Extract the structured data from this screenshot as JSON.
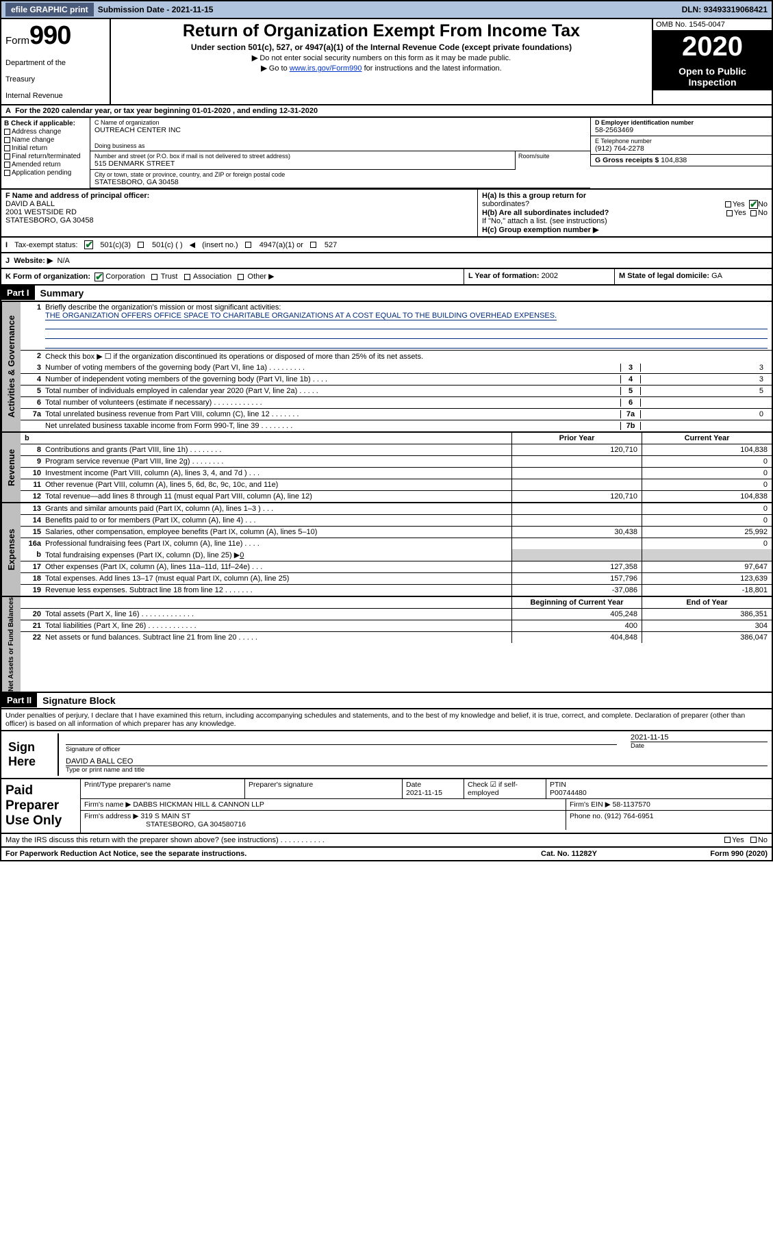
{
  "topbar": {
    "efile": "efile GRAPHIC print",
    "subdate_label": "Submission Date - ",
    "subdate": "2021-11-15",
    "dln_label": "DLN: ",
    "dln": "93493319068421"
  },
  "header": {
    "form_label": "Form",
    "form_num": "990",
    "dept1": "Department of the",
    "dept2": "Treasury",
    "dept3": "Internal Revenue",
    "title": "Return of Organization Exempt From Income Tax",
    "sub": "Under section 501(c), 527, or 4947(a)(1) of the Internal Revenue Code (except private foundations)",
    "note1": "Do not enter social security numbers on this form as it may be made public.",
    "note2_pre": "Go to ",
    "note2_link": "www.irs.gov/Form990",
    "note2_post": " for instructions and the latest information.",
    "omb": "OMB No. 1545-0047",
    "year": "2020",
    "open1": "Open to Public",
    "open2": "Inspection"
  },
  "row_a": "For the 2020 calendar year, or tax year beginning 01-01-2020   , and ending 12-31-2020",
  "colB": {
    "label": "B Check if applicable:",
    "items": [
      "Address change",
      "Name change",
      "Initial return",
      "Final return/terminated",
      "Amended return",
      "Application pending"
    ]
  },
  "orgname": {
    "label": "C Name of organization",
    "value": "OUTREACH CENTER INC",
    "dba": "Doing business as"
  },
  "street": {
    "label": "Number and street (or P.O. box if mail is not delivered to street address)",
    "value": "515 DENMARK STREET",
    "room": "Room/suite"
  },
  "city": {
    "label": "City or town, state or province, country, and ZIP or foreign postal code",
    "value": "STATESBORO, GA  30458"
  },
  "ein": {
    "label": "D Employer identification number",
    "value": "58-2563469"
  },
  "phone": {
    "label": "E Telephone number",
    "value": "(912) 764-2278"
  },
  "gross": {
    "label": "G Gross receipts $ ",
    "value": "104,838"
  },
  "principal": {
    "label": "F  Name and address of principal officer:",
    "name": "DAVID A BALL",
    "addr1": "2001 WESTSIDE RD",
    "addr2": "STATESBORO, GA  30458"
  },
  "h": {
    "ha": "H(a)  Is this a group return for",
    "ha2": "subordinates?",
    "hb": "H(b)  Are all subordinates included?",
    "note": "If \"No,\" attach a list. (see instructions)",
    "hc": "H(c)  Group exemption number ▶",
    "yes": "Yes",
    "no": "No"
  },
  "exempt": {
    "label": "Tax-exempt status:",
    "c3": "501(c)(3)",
    "c": "501(c) (  )",
    "ins": "(insert no.)",
    "a1": "4947(a)(1) or",
    "s527": "527"
  },
  "website": {
    "label": "Website: ▶",
    "value": "N/A"
  },
  "korg": "K Form of organization:",
  "korgopts": [
    "Corporation",
    "Trust",
    "Association",
    "Other ▶"
  ],
  "lyear": {
    "label": "L Year of formation: ",
    "value": "2002"
  },
  "mstate": {
    "label": "M State of legal domicile: ",
    "value": "GA"
  },
  "partI": {
    "hdr": "Part I",
    "title": "Summary"
  },
  "gov": {
    "tab": "Activities & Governance",
    "l1": "Briefly describe the organization's mission or most significant activities:",
    "mission": "THE ORGANIZATION OFFERS OFFICE SPACE TO CHARITABLE ORGANIZATIONS AT A COST EQUAL TO THE BUILDING OVERHEAD EXPENSES.",
    "l2": "Check this box ▶ ☐  if the organization discontinued its operations or disposed of more than 25% of its net assets.",
    "rows": [
      {
        "n": "3",
        "t": "Number of voting members of the governing body (Part VI, line 1a)  .    .    .    .    .    .    .    .    .",
        "bn": "3",
        "bv": "3"
      },
      {
        "n": "4",
        "t": "Number of independent voting members of the governing body (Part VI, line 1b)   .    .    .    .",
        "bn": "4",
        "bv": "3"
      },
      {
        "n": "5",
        "t": "Total number of individuals employed in calendar year 2020 (Part V, line 2a)    .    .    .    .    .",
        "bn": "5",
        "bv": "5"
      },
      {
        "n": "6",
        "t": "Total number of volunteers (estimate if necessary)    .    .    .    .    .    .    .    .    .    .    .    .",
        "bn": "6",
        "bv": ""
      },
      {
        "n": "7a",
        "t": "Total unrelated business revenue from Part VIII, column (C), line 12    .    .    .    .    .    .    .",
        "bn": "7a",
        "bv": "0"
      },
      {
        "n": "",
        "t": "Net unrelated business taxable income from Form 990-T, line 39    .    .    .    .    .    .    .    .",
        "bn": "7b",
        "bv": ""
      }
    ]
  },
  "cols": {
    "b": "b",
    "prior": "Prior Year",
    "curr": "Current Year",
    "beg": "Beginning of Current Year",
    "end": "End of Year"
  },
  "rev": {
    "tab": "Revenue",
    "rows": [
      {
        "n": "8",
        "t": "Contributions and grants (Part VIII, line 1h)    .    .    .    .    .    .    .    .",
        "p": "120,710",
        "c": "104,838"
      },
      {
        "n": "9",
        "t": "Program service revenue (Part VIII, line 2g)    .    .    .    .    .    .    .    .",
        "p": "",
        "c": "0"
      },
      {
        "n": "10",
        "t": "Investment income (Part VIII, column (A), lines 3, 4, and 7d )    .    .    .",
        "p": "",
        "c": "0"
      },
      {
        "n": "11",
        "t": "Other revenue (Part VIII, column (A), lines 5, 6d, 8c, 9c, 10c, and 11e)",
        "p": "",
        "c": "0"
      },
      {
        "n": "12",
        "t": "Total revenue—add lines 8 through 11 (must equal Part VIII, column (A), line 12)",
        "p": "120,710",
        "c": "104,838"
      }
    ]
  },
  "exp": {
    "tab": "Expenses",
    "rows": [
      {
        "n": "13",
        "t": "Grants and similar amounts paid (Part IX, column (A), lines 1–3 )    .    .    .",
        "p": "",
        "c": "0"
      },
      {
        "n": "14",
        "t": "Benefits paid to or for members (Part IX, column (A), line 4)    .    .    .",
        "p": "",
        "c": "0"
      },
      {
        "n": "15",
        "t": "Salaries, other compensation, employee benefits (Part IX, column (A), lines 5–10)",
        "p": "30,438",
        "c": "25,992"
      },
      {
        "n": "16a",
        "t": "Professional fundraising fees (Part IX, column (A), line 11e)    .    .    .    .",
        "p": "",
        "c": "0"
      }
    ],
    "l16b_n": "b",
    "l16b": "Total fundraising expenses (Part IX, column (D), line 25) ▶",
    "l16b_val": "0",
    "rows2": [
      {
        "n": "17",
        "t": "Other expenses (Part IX, column (A), lines 11a–11d, 11f–24e)   .    .    .",
        "p": "127,358",
        "c": "97,647"
      },
      {
        "n": "18",
        "t": "Total expenses. Add lines 13–17 (must equal Part IX, column (A), line 25)",
        "p": "157,796",
        "c": "123,639"
      },
      {
        "n": "19",
        "t": "Revenue less expenses. Subtract line 18 from line 12 .    .    .    .    .    .    .",
        "p": "-37,086",
        "c": "-18,801"
      }
    ]
  },
  "net": {
    "tab": "Net Assets or Fund Balances",
    "rows": [
      {
        "n": "20",
        "t": "Total assets (Part X, line 16)    .    .    .    .    .    .    .    .    .    .    .    .    .",
        "p": "405,248",
        "c": "386,351"
      },
      {
        "n": "21",
        "t": "Total liabilities (Part X, line 26)    .    .    .    .    .    .    .    .    .    .    .    .",
        "p": "400",
        "c": "304"
      },
      {
        "n": "22",
        "t": "Net assets or fund balances. Subtract line 21 from line 20    .    .    .    .    .",
        "p": "404,848",
        "c": "386,047"
      }
    ]
  },
  "partII": {
    "hdr": "Part II",
    "title": "Signature Block"
  },
  "penal": "Under penalties of perjury, I declare that I have examined this return, including accompanying schedules and statements, and to the best of my knowledge and belief, it is true, correct, and complete. Declaration of preparer (other than officer) is based on all information of which preparer has any knowledge.",
  "sign": {
    "here": "Sign Here",
    "sigoff": "Signature of officer",
    "date": "Date",
    "dateval": "2021-11-15",
    "name": "DAVID A BALL  CEO",
    "name_lbl": "Type or print name and title"
  },
  "prep": {
    "left": "Paid Preparer Use Only",
    "h": {
      "a": "Print/Type preparer's name",
      "b": "Preparer's signature",
      "c": "Date",
      "cv": "2021-11-15",
      "d": "Check ☑ if self-employed",
      "e": "PTIN",
      "ev": "P00744480"
    },
    "firm": "Firm's name   ▶ DABBS HICKMAN HILL & CANNON LLP",
    "ein": "Firm's EIN ▶ 58-1137570",
    "addr": "Firm's address ▶ 319 S MAIN ST",
    "city": "STATESBORO, GA  304580716",
    "phone": "Phone no. (912) 764-6951"
  },
  "discuss": {
    "q": "May the IRS discuss this return with the preparer shown above? (see instructions)    .    .    .    .    .    .    .    .    .    .    .",
    "yes": "Yes",
    "no": "No"
  },
  "footer": {
    "a": "For Paperwork Reduction Act Notice, see the separate instructions.",
    "b": "Cat. No. 11282Y",
    "c": "Form 990 (2020)"
  },
  "colors": {
    "topbar_bg": "#b0c4de",
    "btn_bg": "#4a5a7a",
    "black": "#000000",
    "link": "#0033cc",
    "gray": "#bfbfbf",
    "check_green": "#0a7a2a",
    "cellgray": "#d0d0d0"
  }
}
